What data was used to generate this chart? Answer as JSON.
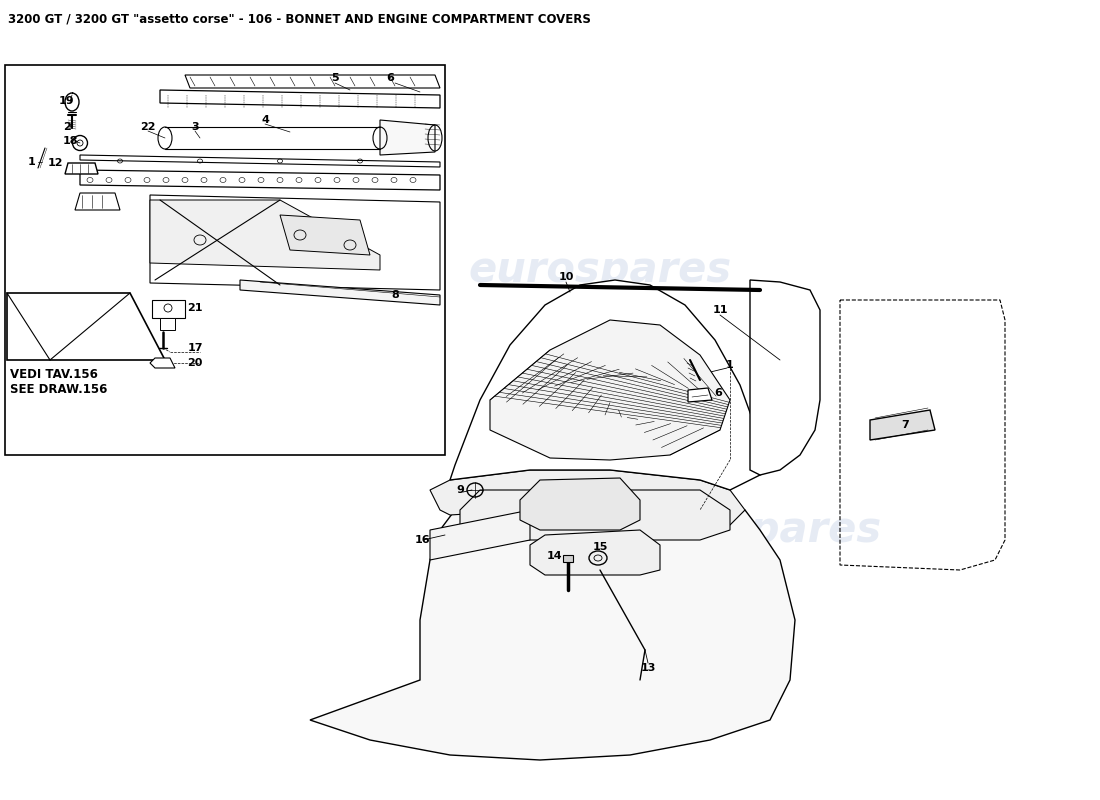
{
  "title": "3200 GT / 3200 GT \"assetto corse\" - 106 - BONNET AND ENGINE COMPARTMENT COVERS",
  "title_fontsize": 8.5,
  "bg_color": "#ffffff",
  "watermark_text": "eurospares",
  "watermark_color": "#c8d4e8",
  "watermark_alpha": 0.45,
  "fig_width": 11.0,
  "fig_height": 8.0,
  "dpi": 100
}
